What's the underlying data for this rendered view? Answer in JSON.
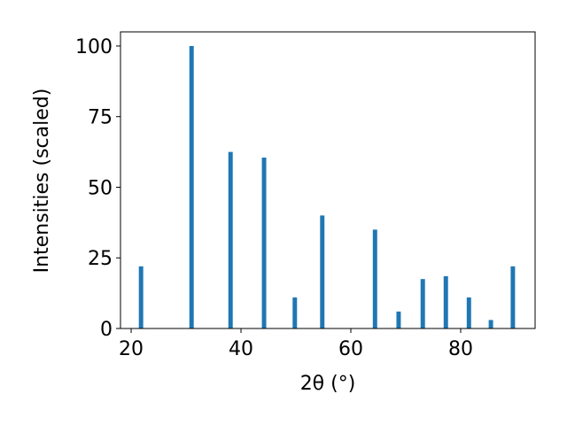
{
  "chart_data": {
    "type": "bar",
    "x_label": "2θ (°)",
    "y_label": "Intensities (scaled)",
    "x": [
      21.8,
      31.0,
      38.1,
      44.2,
      49.8,
      54.8,
      64.4,
      68.7,
      73.1,
      77.3,
      81.5,
      85.5,
      89.5
    ],
    "values": [
      22,
      100,
      62.5,
      60.5,
      11,
      40,
      35,
      6,
      17.5,
      18.5,
      11,
      3,
      22
    ],
    "color": "#1f77b4",
    "xlim": [
      18.06,
      93.55
    ],
    "xticks": [
      20,
      40,
      60,
      80
    ],
    "ylim": [
      0,
      105
    ],
    "yticks": [
      0,
      25,
      50,
      75,
      100
    ],
    "grid": false
  }
}
